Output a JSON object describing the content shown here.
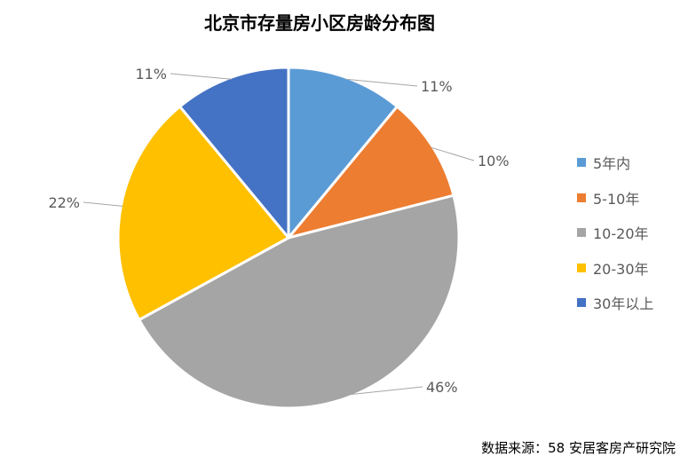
{
  "chart_data": {
    "type": "pie",
    "title": "北京市存量房小区房龄分布图",
    "categories": [
      "5年内",
      "5-10年",
      "10-20年",
      "20-30年",
      "30年以上"
    ],
    "values": [
      11,
      10,
      46,
      22,
      11
    ],
    "value_labels": [
      "11%",
      "10%",
      "46%",
      "22%",
      "11%"
    ],
    "colors": [
      "#5B9BD5",
      "#ED7D31",
      "#A5A5A5",
      "#FFC000",
      "#4472C4"
    ],
    "legend_position": "right"
  },
  "source": "数据来源：58 安居客房产研究院"
}
